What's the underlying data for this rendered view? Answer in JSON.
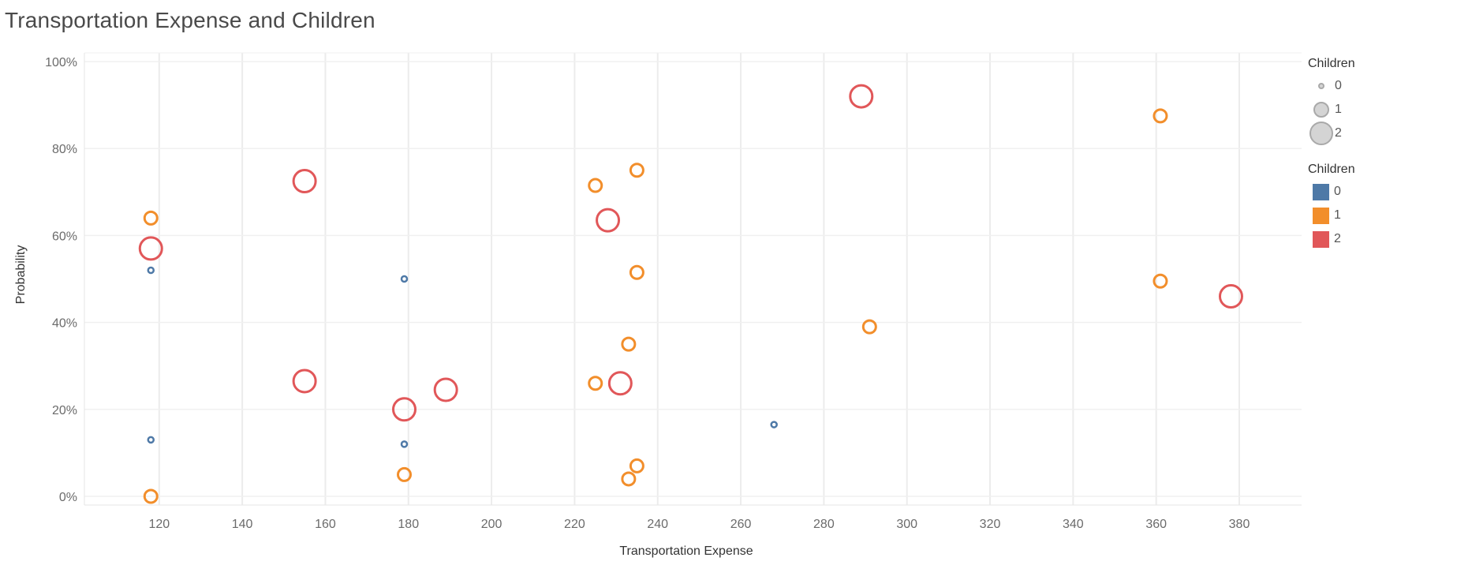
{
  "chart_data": {
    "type": "scatter",
    "title": "Transportation Expense and Children",
    "xlabel": "Transportation Expense",
    "ylabel": "Probability",
    "xlim": [
      102,
      395
    ],
    "ylim": [
      -2,
      102
    ],
    "x_ticks": [
      120,
      140,
      160,
      180,
      200,
      220,
      240,
      260,
      280,
      300,
      320,
      340,
      360,
      380
    ],
    "y_ticks": [
      0,
      20,
      40,
      60,
      80,
      100
    ],
    "y_tick_labels": [
      "0%",
      "20%",
      "40%",
      "60%",
      "80%",
      "100%"
    ],
    "grid": true,
    "legend_position": "right",
    "colors": {
      "0": "#4e79a7",
      "1": "#f28e2b",
      "2": "#e15759"
    },
    "series": [
      {
        "name": "0",
        "points": [
          {
            "x": 118,
            "y": 52
          },
          {
            "x": 179,
            "y": 50
          },
          {
            "x": 118,
            "y": 13
          },
          {
            "x": 179,
            "y": 12
          },
          {
            "x": 268,
            "y": 16.5
          }
        ]
      },
      {
        "name": "1",
        "points": [
          {
            "x": 361,
            "y": 87.5
          },
          {
            "x": 235,
            "y": 75
          },
          {
            "x": 225,
            "y": 71.5
          },
          {
            "x": 118,
            "y": 64
          },
          {
            "x": 235,
            "y": 51.5
          },
          {
            "x": 361,
            "y": 49.5
          },
          {
            "x": 291,
            "y": 39
          },
          {
            "x": 233,
            "y": 35
          },
          {
            "x": 225,
            "y": 26
          },
          {
            "x": 179,
            "y": 5
          },
          {
            "x": 235,
            "y": 7
          },
          {
            "x": 233,
            "y": 4
          },
          {
            "x": 118,
            "y": 0
          }
        ]
      },
      {
        "name": "2",
        "points": [
          {
            "x": 289,
            "y": 92
          },
          {
            "x": 155,
            "y": 72.5
          },
          {
            "x": 228,
            "y": 63.5
          },
          {
            "x": 118,
            "y": 57
          },
          {
            "x": 378,
            "y": 46
          },
          {
            "x": 155,
            "y": 26.5
          },
          {
            "x": 231,
            "y": 26
          },
          {
            "x": 189,
            "y": 24.5
          },
          {
            "x": 179,
            "y": 20
          }
        ]
      }
    ]
  },
  "legends": {
    "size_title": "Children",
    "size_items": [
      "0",
      "1",
      "2"
    ],
    "color_title": "Children",
    "color_items": [
      {
        "label": "0",
        "color": "#4e79a7"
      },
      {
        "label": "1",
        "color": "#f28e2b"
      },
      {
        "label": "2",
        "color": "#e15759"
      }
    ]
  }
}
